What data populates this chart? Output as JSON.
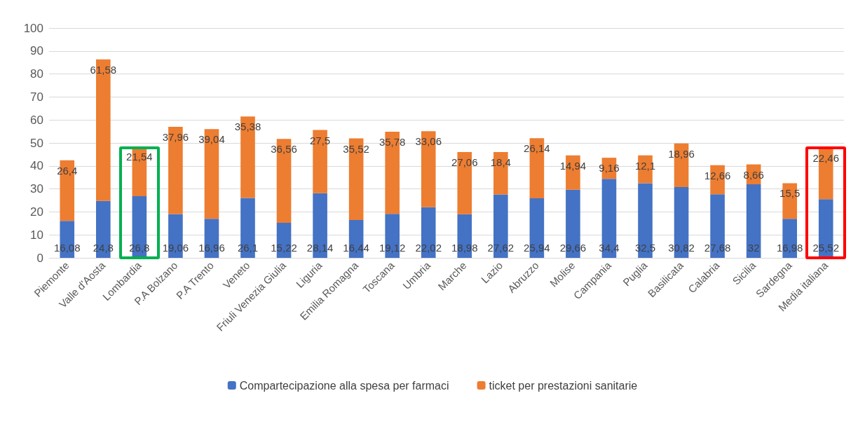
{
  "chart_data": {
    "type": "bar",
    "stacked": true,
    "categories": [
      "Piemonte",
      "Valle d'Aosta",
      "Lombardia",
      "P.A Bolzano",
      "P.A Trento",
      "Veneto",
      "Friuli Venezia Giulia",
      "Liguria",
      "Emilia Romagna",
      "Toscana",
      "Umbria",
      "Marche",
      "Lazio",
      "Abruzzo",
      "Molise",
      "Campania",
      "Puglia",
      "Basilicata",
      "Calabria",
      "Sicilia",
      "Sardegna",
      "Media italiana"
    ],
    "series": [
      {
        "name": "Compartecipazione alla spesa per farmaci",
        "color": "#4472c4",
        "values": [
          16.08,
          24.8,
          26.8,
          19.06,
          16.96,
          26.1,
          15.22,
          28.14,
          16.44,
          19.12,
          22.02,
          18.98,
          27.62,
          25.94,
          29.66,
          34.4,
          32.5,
          30.82,
          27.68,
          32,
          16.98,
          25.52
        ],
        "value_labels": [
          "16,08",
          "24,8",
          "26,8",
          "19,06",
          "16,96",
          "26,1",
          "15,22",
          "28,14",
          "16,44",
          "19,12",
          "22,02",
          "18,98",
          "27,62",
          "25,94",
          "29,66",
          "34,4",
          "32,5",
          "30,82",
          "27,68",
          "32",
          "16,98",
          "25,52"
        ]
      },
      {
        "name": "ticket per prestazioni sanitarie",
        "color": "#ed7d31",
        "values": [
          26.4,
          61.58,
          21.54,
          37.96,
          39.04,
          35.38,
          36.56,
          27.5,
          35.52,
          35.78,
          33.06,
          27.06,
          18.4,
          26.14,
          14.94,
          9.16,
          12.1,
          18.96,
          12.66,
          8.66,
          15.5,
          22.46
        ],
        "value_labels": [
          "26,4",
          "61,58",
          "21,54",
          "37,96",
          "39,04",
          "35,38",
          "36,56",
          "27,5",
          "35,52",
          "35,78",
          "33,06",
          "27,06",
          "18,4",
          "26,14",
          "14,94",
          "9,16",
          "12,1",
          "18,96",
          "12,66",
          "8,66",
          "15,5",
          "22,46"
        ]
      }
    ],
    "ylim": [
      0,
      100
    ],
    "yticks": [
      0,
      10,
      20,
      30,
      40,
      50,
      60,
      70,
      80,
      90,
      100
    ],
    "grid": "y",
    "legend": "bottom"
  }
}
